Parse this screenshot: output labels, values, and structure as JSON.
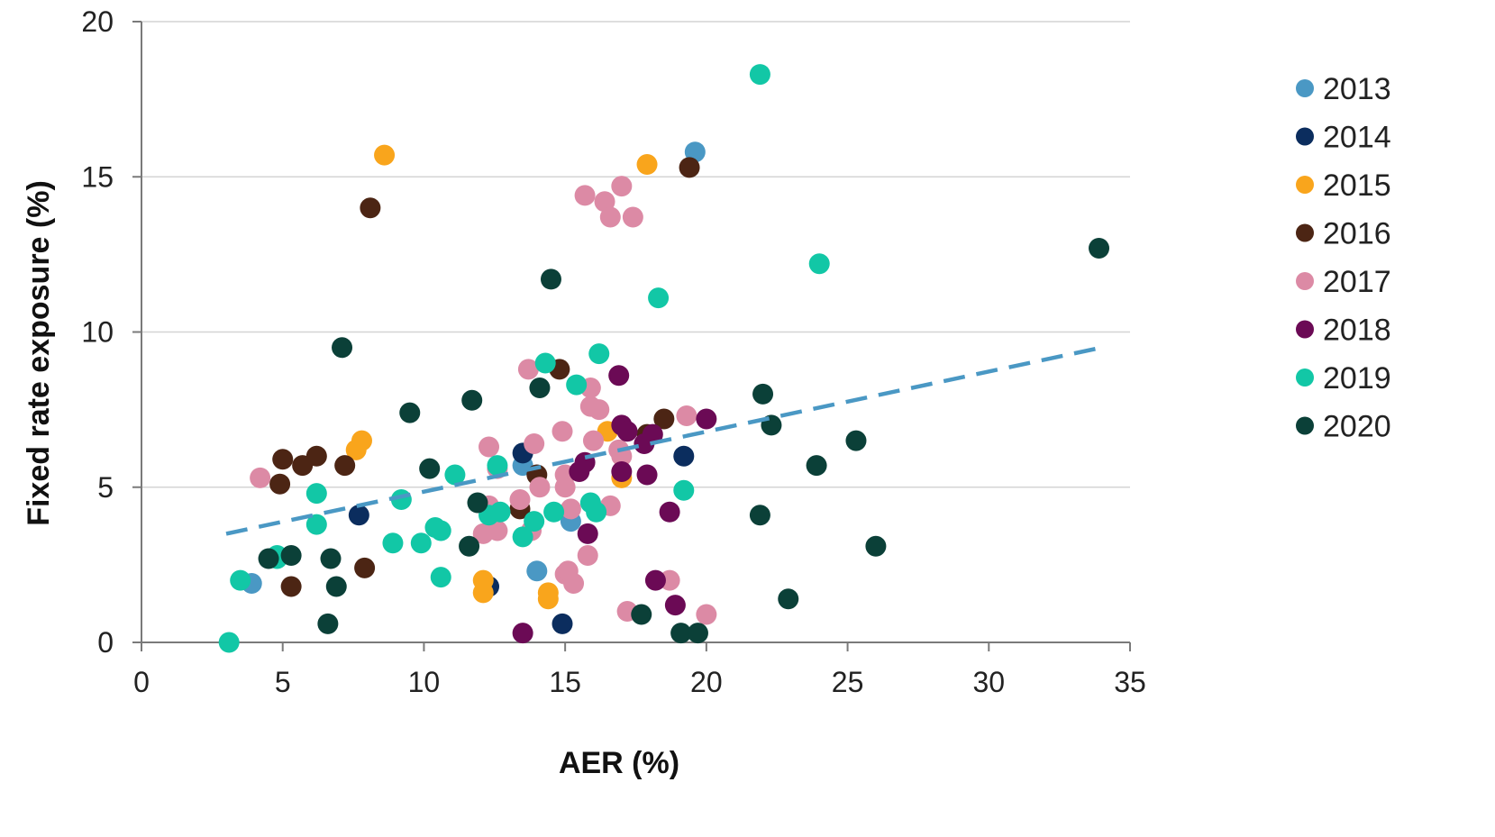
{
  "chart_data": {
    "type": "scatter",
    "xlabel": "AER (%)",
    "ylabel": "Fixed rate exposure (%)",
    "xlim": [
      0,
      35
    ],
    "ylim": [
      0,
      20
    ],
    "xticks": [
      0,
      5,
      10,
      15,
      20,
      25,
      30,
      35
    ],
    "yticks": [
      0,
      5,
      10,
      15,
      20
    ],
    "grid": "horizontal",
    "legend_position": "right",
    "trendline": {
      "style": "dashed",
      "color": "#4a98c4",
      "points": [
        [
          3,
          3.5
        ],
        [
          34,
          9.5
        ]
      ]
    },
    "series": [
      {
        "name": "2013",
        "color": "#4a98c4",
        "points": [
          [
            3.9,
            1.9
          ],
          [
            13.5,
            5.7
          ],
          [
            14.0,
            2.3
          ],
          [
            15.2,
            3.9
          ],
          [
            19.6,
            15.8
          ]
        ]
      },
      {
        "name": "2014",
        "color": "#0b2d5e",
        "points": [
          [
            7.7,
            4.1
          ],
          [
            13.5,
            6.1
          ],
          [
            12.3,
            1.8
          ],
          [
            14.9,
            0.6
          ],
          [
            19.2,
            6.0
          ]
        ]
      },
      {
        "name": "2015",
        "color": "#f9a51c",
        "points": [
          [
            8.6,
            15.7
          ],
          [
            7.6,
            6.2
          ],
          [
            7.8,
            6.5
          ],
          [
            12.1,
            2.0
          ],
          [
            12.1,
            1.6
          ],
          [
            14.4,
            1.6
          ],
          [
            14.4,
            1.4
          ],
          [
            16.5,
            6.8
          ],
          [
            17.0,
            5.3
          ],
          [
            17.9,
            15.4
          ]
        ]
      },
      {
        "name": "2016",
        "color": "#4c2514",
        "points": [
          [
            4.9,
            5.1
          ],
          [
            5.0,
            5.9
          ],
          [
            5.3,
            1.8
          ],
          [
            5.7,
            5.7
          ],
          [
            6.2,
            6.0
          ],
          [
            7.2,
            5.7
          ],
          [
            7.9,
            2.4
          ],
          [
            8.1,
            14.0
          ],
          [
            13.4,
            4.3
          ],
          [
            14.0,
            5.4
          ],
          [
            14.8,
            8.8
          ],
          [
            17.9,
            6.7
          ],
          [
            18.5,
            7.2
          ],
          [
            19.4,
            15.3
          ]
        ]
      },
      {
        "name": "2017",
        "color": "#dc8aa5",
        "points": [
          [
            4.2,
            5.3
          ],
          [
            12.1,
            3.5
          ],
          [
            12.3,
            4.4
          ],
          [
            12.3,
            6.3
          ],
          [
            12.6,
            3.6
          ],
          [
            12.6,
            5.6
          ],
          [
            13.4,
            4.6
          ],
          [
            13.7,
            8.8
          ],
          [
            13.8,
            3.6
          ],
          [
            13.9,
            6.4
          ],
          [
            14.1,
            5.0
          ],
          [
            14.9,
            6.8
          ],
          [
            15.0,
            5.0
          ],
          [
            15.0,
            5.4
          ],
          [
            15.0,
            2.2
          ],
          [
            15.1,
            2.3
          ],
          [
            15.2,
            4.3
          ],
          [
            15.3,
            1.9
          ],
          [
            15.7,
            14.4
          ],
          [
            15.8,
            2.8
          ],
          [
            15.9,
            8.2
          ],
          [
            15.9,
            7.6
          ],
          [
            16.0,
            6.5
          ],
          [
            16.2,
            7.5
          ],
          [
            16.4,
            14.2
          ],
          [
            16.6,
            13.7
          ],
          [
            16.6,
            4.4
          ],
          [
            16.9,
            6.2
          ],
          [
            17.0,
            6.0
          ],
          [
            17.0,
            14.7
          ],
          [
            17.2,
            1.0
          ],
          [
            17.4,
            13.7
          ],
          [
            18.7,
            2.0
          ],
          [
            19.3,
            7.3
          ],
          [
            20.0,
            0.9
          ]
        ]
      },
      {
        "name": "2018",
        "color": "#6b0a55",
        "points": [
          [
            13.5,
            0.3
          ],
          [
            15.5,
            5.5
          ],
          [
            15.7,
            5.8
          ],
          [
            15.8,
            3.5
          ],
          [
            16.9,
            8.6
          ],
          [
            17.0,
            5.5
          ],
          [
            17.0,
            7.0
          ],
          [
            17.2,
            6.8
          ],
          [
            17.8,
            6.4
          ],
          [
            17.9,
            5.4
          ],
          [
            18.1,
            6.7
          ],
          [
            18.2,
            2.0
          ],
          [
            18.7,
            4.2
          ],
          [
            18.9,
            1.2
          ],
          [
            20.0,
            7.2
          ]
        ]
      },
      {
        "name": "2019",
        "color": "#12c7a6",
        "points": [
          [
            3.1,
            0.0
          ],
          [
            3.5,
            2.0
          ],
          [
            4.8,
            2.7
          ],
          [
            4.8,
            2.8
          ],
          [
            6.2,
            3.8
          ],
          [
            6.2,
            4.8
          ],
          [
            8.9,
            3.2
          ],
          [
            9.2,
            4.6
          ],
          [
            9.9,
            3.2
          ],
          [
            10.4,
            3.7
          ],
          [
            10.6,
            3.6
          ],
          [
            10.6,
            2.1
          ],
          [
            11.1,
            5.4
          ],
          [
            12.3,
            4.1
          ],
          [
            12.6,
            5.7
          ],
          [
            12.7,
            4.2
          ],
          [
            13.5,
            3.4
          ],
          [
            13.9,
            3.9
          ],
          [
            14.3,
            9.0
          ],
          [
            14.6,
            4.2
          ],
          [
            15.4,
            8.3
          ],
          [
            15.9,
            4.5
          ],
          [
            16.1,
            4.2
          ],
          [
            16.2,
            9.3
          ],
          [
            18.3,
            11.1
          ],
          [
            19.2,
            4.9
          ],
          [
            21.9,
            18.3
          ],
          [
            24.0,
            12.2
          ]
        ]
      },
      {
        "name": "2020",
        "color": "#0b4038",
        "points": [
          [
            4.5,
            2.7
          ],
          [
            5.3,
            2.8
          ],
          [
            6.6,
            0.6
          ],
          [
            6.7,
            2.7
          ],
          [
            6.9,
            1.8
          ],
          [
            7.1,
            9.5
          ],
          [
            9.5,
            7.4
          ],
          [
            10.2,
            5.6
          ],
          [
            11.6,
            3.1
          ],
          [
            11.7,
            7.8
          ],
          [
            11.9,
            4.5
          ],
          [
            14.1,
            8.2
          ],
          [
            14.5,
            11.7
          ],
          [
            17.7,
            0.9
          ],
          [
            19.1,
            0.3
          ],
          [
            19.7,
            0.3
          ],
          [
            21.9,
            4.1
          ],
          [
            22.0,
            8.0
          ],
          [
            22.3,
            7.0
          ],
          [
            22.9,
            1.4
          ],
          [
            23.9,
            5.7
          ],
          [
            25.3,
            6.5
          ],
          [
            26.0,
            3.1
          ],
          [
            33.9,
            12.7
          ]
        ]
      }
    ]
  }
}
